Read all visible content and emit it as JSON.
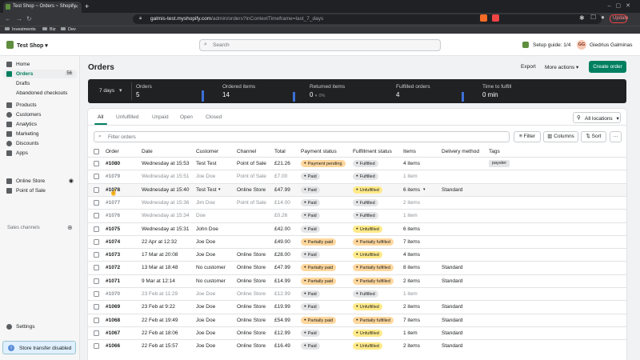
{
  "browser": {
    "tab_title": "Test Shop ~ Orders ~ Shopify",
    "url_host": "galmis-test.myshopify.com",
    "url_path": "/admin/orders?inContextTimeframe=last_7_days",
    "update_label": "Update",
    "bookmarks": [
      "Investments",
      "Biz",
      "Dev"
    ]
  },
  "topbar": {
    "shop_name": "Test Shop",
    "search_placeholder": "Search",
    "setup_guide": "Setup guide: 1/4",
    "avatar_initials": "GG",
    "user_name": "Giedrius Galminas"
  },
  "sidebar": {
    "home": "Home",
    "orders": "Orders",
    "orders_count": "56",
    "drafts": "Drafts",
    "abandoned": "Abandoned checkouts",
    "products": "Products",
    "customers": "Customers",
    "analytics": "Analytics",
    "marketing": "Marketing",
    "discounts": "Discounts",
    "apps": "Apps",
    "sales_channels": "Sales channels",
    "online_store": "Online Store",
    "pos": "Point of Sale",
    "settings": "Settings",
    "toast": "Store transfer disabled"
  },
  "page": {
    "title": "Orders",
    "export": "Export",
    "more_actions": "More actions",
    "create_order": "Create order"
  },
  "stats": {
    "period": "7 days",
    "orders_label": "Orders",
    "orders_value": "5",
    "ordered_label": "Ordered items",
    "ordered_value": "14",
    "returned_label": "Returned items",
    "returned_value": "0",
    "returned_pct": "0%",
    "fulfilled_label": "Fulfilled orders",
    "fulfilled_value": "4",
    "ttf_label": "Time to fulfill",
    "ttf_value": "0 min"
  },
  "tabs": {
    "all": "All",
    "unfulfilled": "Unfulfilled",
    "unpaid": "Unpaid",
    "open": "Open",
    "closed": "Closed",
    "locations": "All locations"
  },
  "filters": {
    "placeholder": "Filter orders",
    "filter": "Filter",
    "columns": "Columns",
    "sort": "Sort"
  },
  "columns": {
    "order": "Order",
    "date": "Date",
    "customer": "Customer",
    "channel": "Channel",
    "total": "Total",
    "payment": "Payment status",
    "fulfillment": "Fulfillment status",
    "items": "Items",
    "delivery": "Delivery method",
    "tags": "Tags"
  },
  "colors": {
    "accent": "#008060",
    "dark_panel": "#202123"
  },
  "orders": [
    {
      "id": "#1080",
      "date": "Wednesday at 15:53",
      "customer": "Test Test",
      "channel": "Point of Sale",
      "total": "£21.26",
      "payment": "Payment pending",
      "fulfillment": "Fulfilled",
      "items": "4 items",
      "delivery": "",
      "tag": "payster"
    },
    {
      "id": "#1079",
      "date": "Wednesday at 15:51",
      "customer": "Joe Doe",
      "channel": "Point of Sale",
      "total": "£7.00",
      "payment": "Paid",
      "fulfillment": "Fulfilled",
      "items": "1 item",
      "delivery": "",
      "tag": ""
    },
    {
      "id": "#1078",
      "date": "Wednesday at 15:40",
      "customer": "Test Test",
      "channel": "Online Store",
      "total": "£47.99",
      "payment": "Paid",
      "fulfillment": "Unfulfilled",
      "items": "6 items",
      "delivery": "Standard",
      "tag": ""
    },
    {
      "id": "#1077",
      "date": "Wednesday at 15:36",
      "customer": "Jim Doe",
      "channel": "Point of Sale",
      "total": "£14.00",
      "payment": "Paid",
      "fulfillment": "Fulfilled",
      "items": "2 items",
      "delivery": "",
      "tag": ""
    },
    {
      "id": "#1076",
      "date": "Wednesday at 15:34",
      "customer": "Doe",
      "channel": "",
      "total": "£0.26",
      "payment": "Paid",
      "fulfillment": "Fulfilled",
      "items": "1 item",
      "delivery": "",
      "tag": ""
    },
    {
      "id": "#1075",
      "date": "Wednesday at 15:31",
      "customer": "John Doe",
      "channel": "",
      "total": "£42.00",
      "payment": "Paid",
      "fulfillment": "Unfulfilled",
      "items": "6 items",
      "delivery": "",
      "tag": ""
    },
    {
      "id": "#1074",
      "date": "22 Apr at 12:32",
      "customer": "Joe Doe",
      "channel": "",
      "total": "£49.00",
      "payment": "Partially paid",
      "fulfillment": "Partially fulfilled",
      "items": "7 items",
      "delivery": "",
      "tag": ""
    },
    {
      "id": "#1073",
      "date": "17 Mar at 20:08",
      "customer": "Joe Doe",
      "channel": "Online Store",
      "total": "£28.00",
      "payment": "Paid",
      "fulfillment": "Unfulfilled",
      "items": "4 items",
      "delivery": "",
      "tag": ""
    },
    {
      "id": "#1072",
      "date": "13 Mar at 18:48",
      "customer": "No customer",
      "channel": "Online Store",
      "total": "£47.99",
      "payment": "Partially paid",
      "fulfillment": "Partially fulfilled",
      "items": "8 items",
      "delivery": "Standard",
      "tag": ""
    },
    {
      "id": "#1071",
      "date": "9 Mar at 12:14",
      "customer": "No customer",
      "channel": "Online Store",
      "total": "£14.99",
      "payment": "Partially paid",
      "fulfillment": "Partially fulfilled",
      "items": "2 items",
      "delivery": "Standard",
      "tag": ""
    },
    {
      "id": "#1070",
      "date": "23 Feb at 11:29",
      "customer": "Joe Doe",
      "channel": "Online Store",
      "total": "£12.99",
      "payment": "Paid",
      "fulfillment": "Fulfilled",
      "items": "1 item",
      "delivery": "",
      "tag": ""
    },
    {
      "id": "#1069",
      "date": "23 Feb at 9:22",
      "customer": "Joe Doe",
      "channel": "Online Store",
      "total": "£19.99",
      "payment": "Paid",
      "fulfillment": "Unfulfilled",
      "items": "2 items",
      "delivery": "Standard",
      "tag": ""
    },
    {
      "id": "#1068",
      "date": "22 Feb at 19:49",
      "customer": "Joe Doe",
      "channel": "Online Store",
      "total": "£54.99",
      "payment": "Partially paid",
      "fulfillment": "Partially fulfilled",
      "items": "7 items",
      "delivery": "Standard",
      "tag": ""
    },
    {
      "id": "#1067",
      "date": "22 Feb at 18:06",
      "customer": "Joe Doe",
      "channel": "Online Store",
      "total": "£12.99",
      "payment": "Paid",
      "fulfillment": "Unfulfilled",
      "items": "1 item",
      "delivery": "Standard",
      "tag": ""
    },
    {
      "id": "#1066",
      "date": "22 Feb at 15:57",
      "customer": "Joe Doe",
      "channel": "Online Store",
      "total": "£16.49",
      "payment": "Paid",
      "fulfillment": "Unfulfilled",
      "items": "2 items",
      "delivery": "Standard",
      "tag": ""
    }
  ]
}
